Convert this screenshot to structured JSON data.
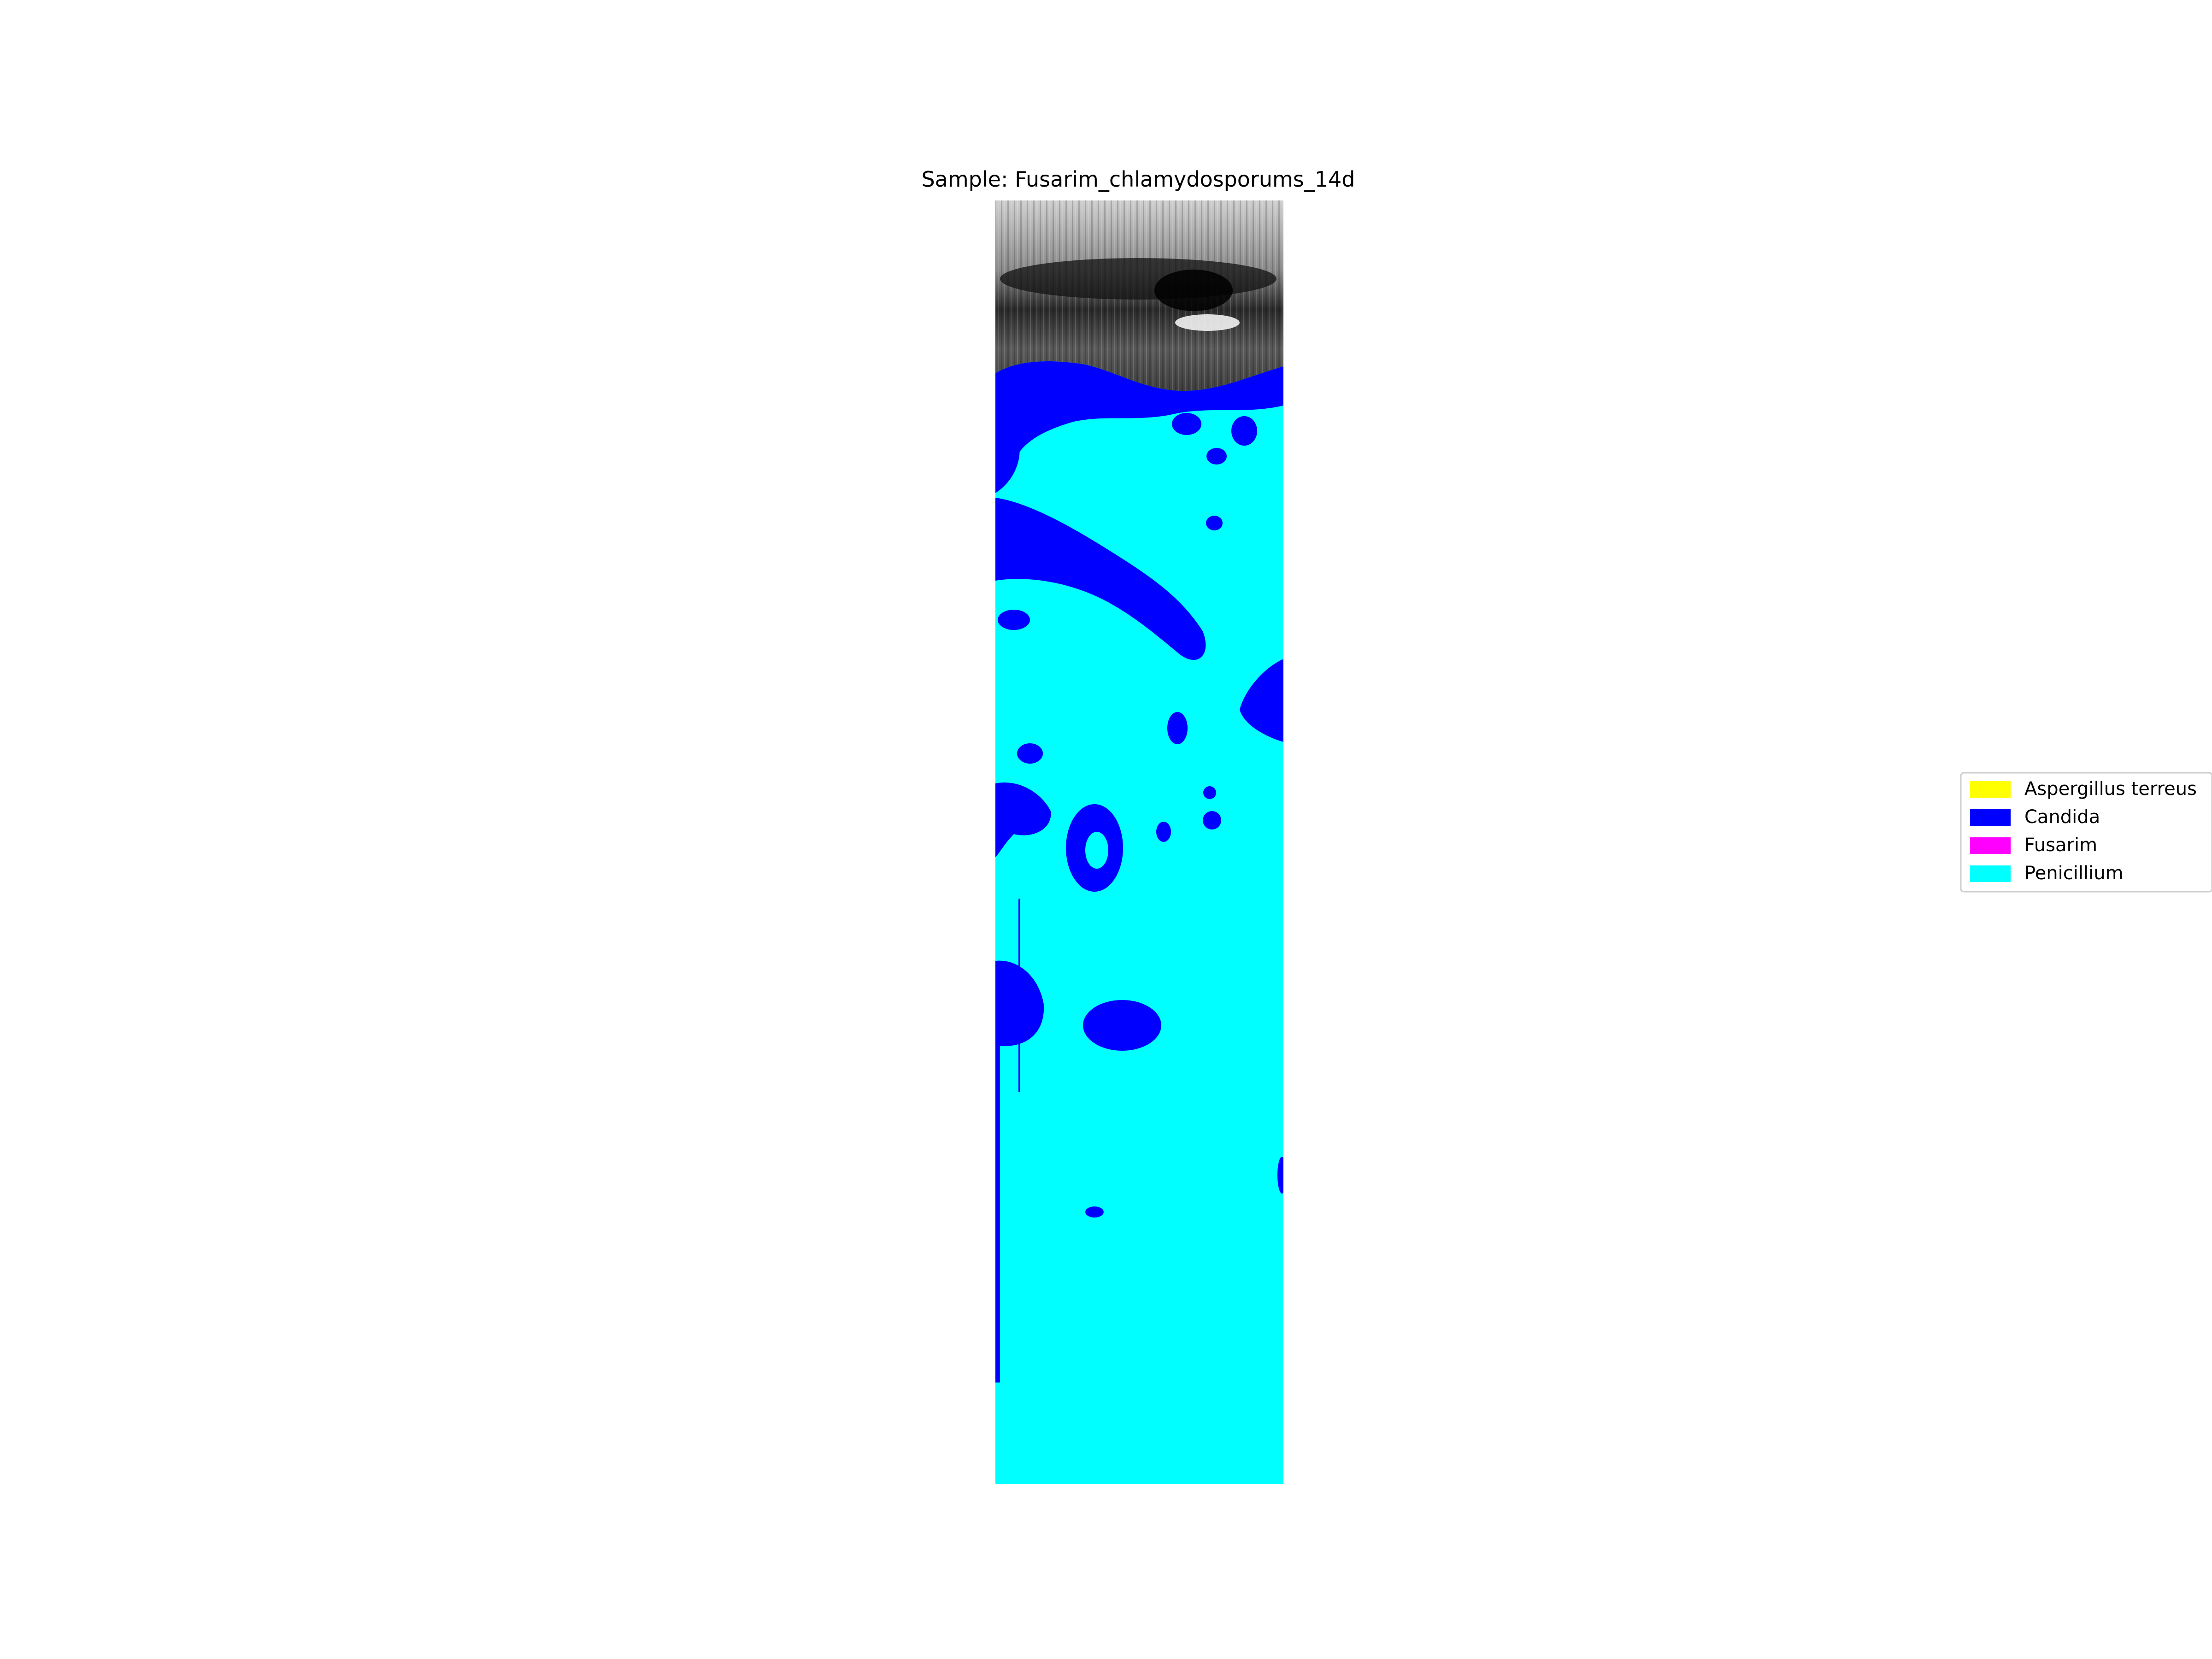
{
  "chart_data": {
    "type": "heatmap",
    "title": "Sample: Fusarim_chlamydosporums_14d",
    "xlabel": "",
    "ylabel": "",
    "axes_visible": false,
    "background_layer": "grayscale scan image (top region)",
    "legend": {
      "placement": "center-right, outside plot",
      "entries": [
        {
          "label": "Aspergillus terreus",
          "color": "#ffff00"
        },
        {
          "label": "Candida",
          "color": "#0000ff"
        },
        {
          "label": "Fusarim",
          "color": "#ff00ff"
        },
        {
          "label": "Penicillium",
          "color": "#00ffff"
        }
      ]
    },
    "dominant_class": "Penicillium",
    "secondary_class": "Candida",
    "approx_area_fraction": {
      "Penicillium": 0.78,
      "Candida": 0.22,
      "Aspergillus terreus": 0.0,
      "Fusarim": 0.0
    }
  }
}
